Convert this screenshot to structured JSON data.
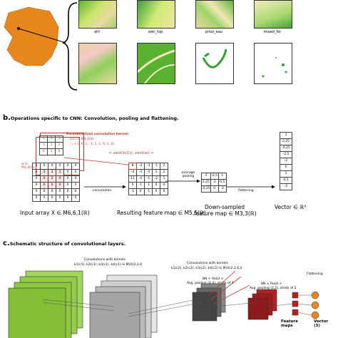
{
  "section_a": {
    "thumb_labels": [
      "alti",
      "awc_top",
      "proxi_eau",
      "mixed_for"
    ]
  },
  "section_b": {
    "title_letter": "b.",
    "title": "Operations specific to CNN: Convolution, pooling and flattening.",
    "kernel_title": "Parameterized convolution kernel:",
    "kernel_def": "k(1) ∈ M3,3(ℝ)",
    "kernel_vec": ":= (-1, 0, 1, -1, 1, 1, 0, 1, 0)",
    "kernel_side": "w ∈ M3,3(ℝ)",
    "dot_label": "< vect(k(1)), vect(w) >",
    "kernel_grid": [
      [
        "-1",
        "0",
        "1"
      ],
      [
        "-1",
        "1",
        "1"
      ],
      [
        "0",
        "1",
        "0"
      ]
    ],
    "input_grid": [
      [
        "0",
        "0",
        "0",
        "0",
        "0",
        "0"
      ],
      [
        "0",
        "3",
        "2",
        "1",
        "0",
        "0"
      ],
      [
        "0",
        "0",
        "2",
        "0",
        "0",
        "0"
      ],
      [
        "0",
        "0",
        "0",
        "0",
        "0",
        "0"
      ],
      [
        "0",
        "0",
        "0",
        "0",
        "0",
        "0"
      ],
      [
        "0",
        "0",
        "0",
        "0",
        "0",
        "0"
      ]
    ],
    "feature_grid": [
      [
        "8",
        "-3",
        "-3",
        "-1",
        "2"
      ],
      [
        "-4",
        "-3",
        "-3",
        "1",
        "2"
      ],
      [
        "11",
        "-4",
        "-1",
        "-2",
        "1"
      ],
      [
        "0",
        "-1",
        "-1",
        "0",
        "0"
      ],
      [
        "-1",
        "0",
        "-1",
        "0",
        "0"
      ]
    ],
    "pooled_grid": [
      [
        "3",
        "-2,5",
        "1"
      ],
      [
        "2,25",
        "-2",
        "0,5"
      ],
      [
        "-0,25",
        "0",
        "-2"
      ]
    ],
    "vector": [
      "3",
      "2,25",
      "-0,25",
      "-2,5",
      "-2",
      "0",
      "1",
      "0,5",
      "-2"
    ],
    "arrow_convolution": "convolution",
    "arrow_pooling": "average pooling",
    "arrow_flattening": "flattening",
    "cap_input": "Input array X ∈ M6,6,1(ℝ)",
    "cap_feature": "Resulting feature map ∈ M5,5(ℝ)",
    "cap_pooled_1": "Down-sampled",
    "cap_pooled_2": "feature map ∈ M3,3(ℝ)",
    "cap_vector": "Vector ∈ ℝ⁹"
  },
  "section_c": {
    "title_letter": "c.",
    "title": "Schematic structure of convolutional layers.",
    "conv1_label_1": "Convolutions with kernels",
    "conv1_label_2": "k1(c1), k2(c1), k3(c1), k4(c1) ∈ M(ℝ)2,2,4",
    "conv2_label_1": "Convolutions with kernels",
    "conv2_label_2": "k1(c2), k2(c2), k3(c2), k4(c2) ∈ M(ℝ)2,2,4,4",
    "bn1": "BN + ReLU +",
    "pool1": "Avg. pooling (4,4), stride of 4",
    "bn2": "BN + ReLU +",
    "pool2": "Avg. pooling (2,2), stride of 2",
    "flattening": "Flattening",
    "feature_maps": "Feature maps",
    "vector": "Vector (3)"
  },
  "colors": {
    "red": "#c0392b",
    "green": "#8dc63f",
    "dark_red": "#8b1a1a",
    "orange": "#e8871e"
  }
}
